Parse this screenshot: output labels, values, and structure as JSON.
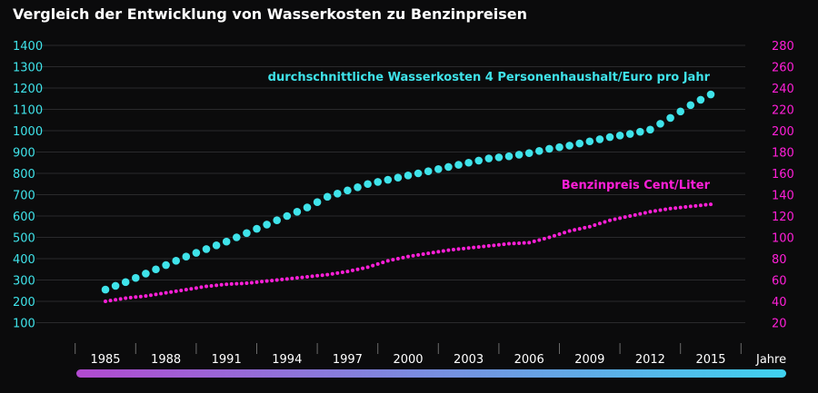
{
  "chart_data": {
    "type": "scatter",
    "title": "Vergleich der Entwicklung von Wasserkosten zu Benzinpreisen",
    "xlabel": "Jahre",
    "x_ticks": [
      "1985",
      "1988",
      "1991",
      "1994",
      "1997",
      "2000",
      "2003",
      "2006",
      "2009",
      "2012",
      "2015"
    ],
    "x_range": [
      1985,
      2015
    ],
    "y_left": {
      "ticks": [
        100,
        200,
        300,
        400,
        500,
        600,
        700,
        800,
        900,
        1000,
        1100,
        1200,
        1300,
        1400
      ],
      "range": [
        0,
        1400
      ]
    },
    "y_right": {
      "ticks": [
        20,
        40,
        60,
        80,
        100,
        120,
        140,
        160,
        180,
        200,
        220,
        240,
        260,
        280
      ],
      "range": [
        0,
        280
      ]
    },
    "grid": true,
    "series": [
      {
        "name": "durchschnittliche Wasserkosten 4 Personenhaushalt/Euro pro Jahr",
        "axis": "left",
        "color": "#3fe3ea",
        "x": [
          1985,
          1986,
          1987,
          1988,
          1989,
          1990,
          1991,
          1992,
          1993,
          1994,
          1995,
          1996,
          1997,
          1998,
          1999,
          2000,
          2001,
          2002,
          2003,
          2004,
          2005,
          2006,
          2007,
          2008,
          2009,
          2010,
          2011,
          2012,
          2013,
          2014,
          2015
        ],
        "y": [
          255,
          290,
          330,
          370,
          410,
          445,
          480,
          520,
          560,
          600,
          640,
          690,
          720,
          750,
          770,
          790,
          810,
          830,
          850,
          870,
          880,
          895,
          915,
          930,
          950,
          970,
          985,
          1005,
          1060,
          1120,
          1170
        ]
      },
      {
        "name": "Benzinpreis Cent/Liter",
        "axis": "right",
        "color": "#ff1fd8",
        "x": [
          1985,
          1986,
          1987,
          1988,
          1989,
          1990,
          1991,
          1992,
          1993,
          1994,
          1995,
          1996,
          1997,
          1998,
          1999,
          2000,
          2001,
          2002,
          2003,
          2004,
          2005,
          2006,
          2007,
          2008,
          2009,
          2010,
          2011,
          2012,
          2013,
          2014,
          2015
        ],
        "y": [
          40,
          43,
          45,
          48,
          51,
          54,
          56,
          57,
          59,
          61,
          63,
          65,
          68,
          72,
          78,
          82,
          85,
          88,
          90,
          92,
          94,
          95,
          100,
          106,
          110,
          116,
          120,
          124,
          127,
          129,
          131
        ]
      }
    ],
    "gradient_bar": [
      "#b24ad1",
      "#3fd2f0"
    ]
  }
}
